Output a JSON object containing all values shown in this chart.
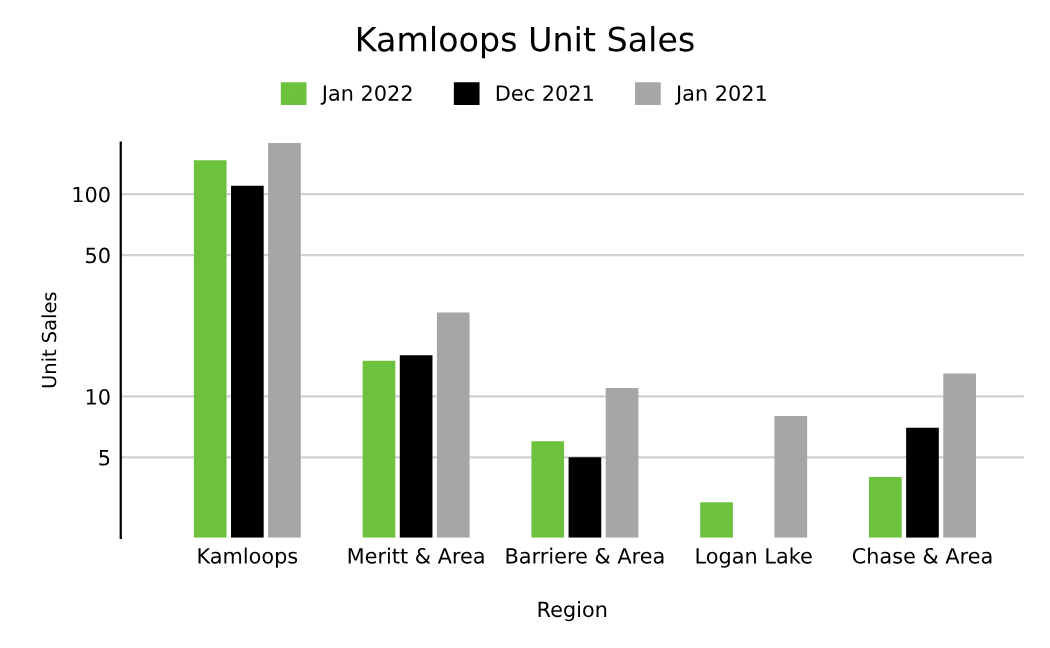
{
  "chart_data": {
    "type": "bar",
    "title": "Kamloops Unit Sales",
    "xlabel": "Region",
    "ylabel": "Unit Sales",
    "categories": [
      "Kamloops",
      "Meritt & Area",
      "Barriere & Area",
      "Logan Lake",
      "Chase & Area"
    ],
    "series": [
      {
        "name": "Jan 2022",
        "color": "#6cc13d",
        "values": [
          147,
          15,
          6,
          3,
          4
        ]
      },
      {
        "name": "Dec 2021",
        "color": "#000000",
        "values": [
          110,
          16,
          5,
          null,
          7
        ]
      },
      {
        "name": "Jan 2021",
        "color": "#a6a6a6",
        "values": [
          179,
          26,
          11,
          8,
          13
        ]
      }
    ],
    "log": true,
    "ylim": [
      2,
      180
    ],
    "yticks": [
      5,
      10,
      50,
      100
    ],
    "grid": "y",
    "legend": "top"
  }
}
